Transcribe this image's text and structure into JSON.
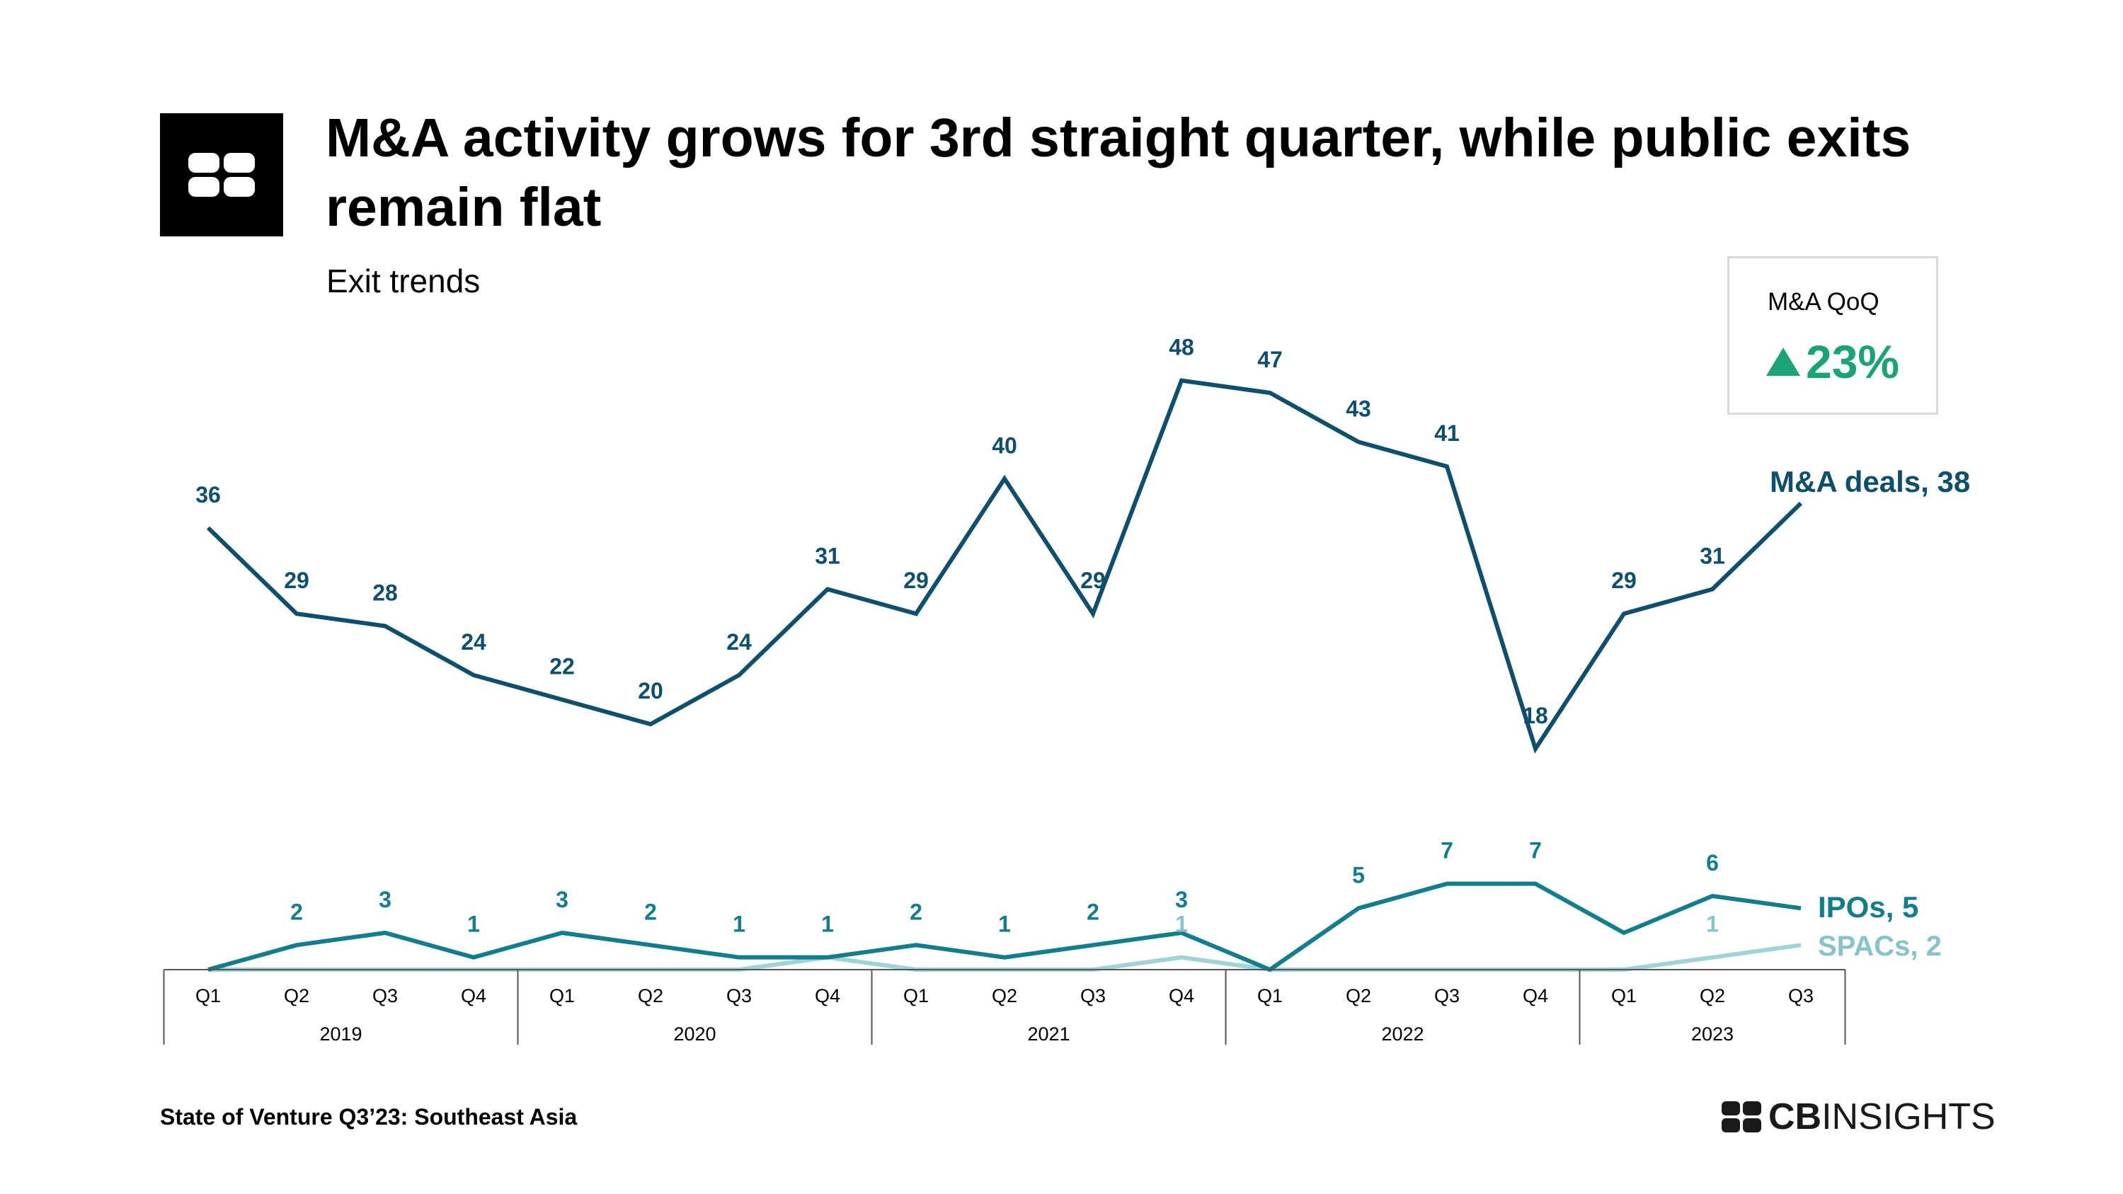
{
  "header": {
    "title": "M&A activity grows for 3rd straight quarter, while public exits remain flat",
    "subtitle": "Exit trends"
  },
  "callout": {
    "label": "M&A QoQ",
    "value": "23%",
    "icon": "triangle-up-icon",
    "color": "#1aa377"
  },
  "footer": {
    "source": "State of Venture Q3’23: Southeast Asia",
    "brand_bold": "CB",
    "brand_light": "INSIGHTS"
  },
  "chart_data": {
    "type": "line",
    "categories": [
      "Q1",
      "Q2",
      "Q3",
      "Q4",
      "Q1",
      "Q2",
      "Q3",
      "Q4",
      "Q1",
      "Q2",
      "Q3",
      "Q4",
      "Q1",
      "Q2",
      "Q3",
      "Q4",
      "Q1",
      "Q2",
      "Q3"
    ],
    "years": [
      {
        "label": "2019",
        "quarters": 4
      },
      {
        "label": "2020",
        "quarters": 4
      },
      {
        "label": "2021",
        "quarters": 4
      },
      {
        "label": "2022",
        "quarters": 4
      },
      {
        "label": "2023",
        "quarters": 3
      }
    ],
    "ylim": [
      0,
      50
    ],
    "grid": false,
    "series": [
      {
        "name": "M&A deals",
        "end_label": "M&A deals, 38",
        "color": "#0e4f6e",
        "values": [
          36,
          29,
          28,
          24,
          22,
          20,
          24,
          31,
          29,
          40,
          29,
          48,
          47,
          43,
          41,
          18,
          29,
          31,
          38
        ],
        "labels": [
          "36",
          "29",
          "28",
          "24",
          "22",
          "20",
          "24",
          "31",
          "29",
          "40",
          "29",
          "48",
          "47",
          "43",
          "41",
          "18",
          "29",
          "31",
          ""
        ]
      },
      {
        "name": "IPOs",
        "end_label": "IPOs, 5",
        "color": "#127d8c",
        "values": [
          0,
          2,
          3,
          1,
          3,
          2,
          1,
          1,
          2,
          1,
          2,
          3,
          0,
          5,
          7,
          7,
          3,
          6,
          5
        ],
        "labels": [
          "",
          "2",
          "3",
          "1",
          "3",
          "2",
          "1",
          "1",
          "2",
          "1",
          "2",
          "3",
          "",
          "5",
          "7",
          "7",
          "",
          "6",
          ""
        ]
      },
      {
        "name": "SPACs",
        "end_label": "SPACs, 2",
        "color": "#9fd3d9",
        "values": [
          0,
          0,
          0,
          0,
          0,
          0,
          0,
          1,
          0,
          0,
          0,
          1,
          0,
          0,
          0,
          0,
          0,
          1,
          2
        ],
        "labels": [
          "",
          "",
          "",
          "",
          "",
          "",
          "",
          "",
          "",
          "",
          "",
          "1",
          "",
          "",
          "",
          "",
          "",
          "1",
          ""
        ]
      }
    ]
  }
}
